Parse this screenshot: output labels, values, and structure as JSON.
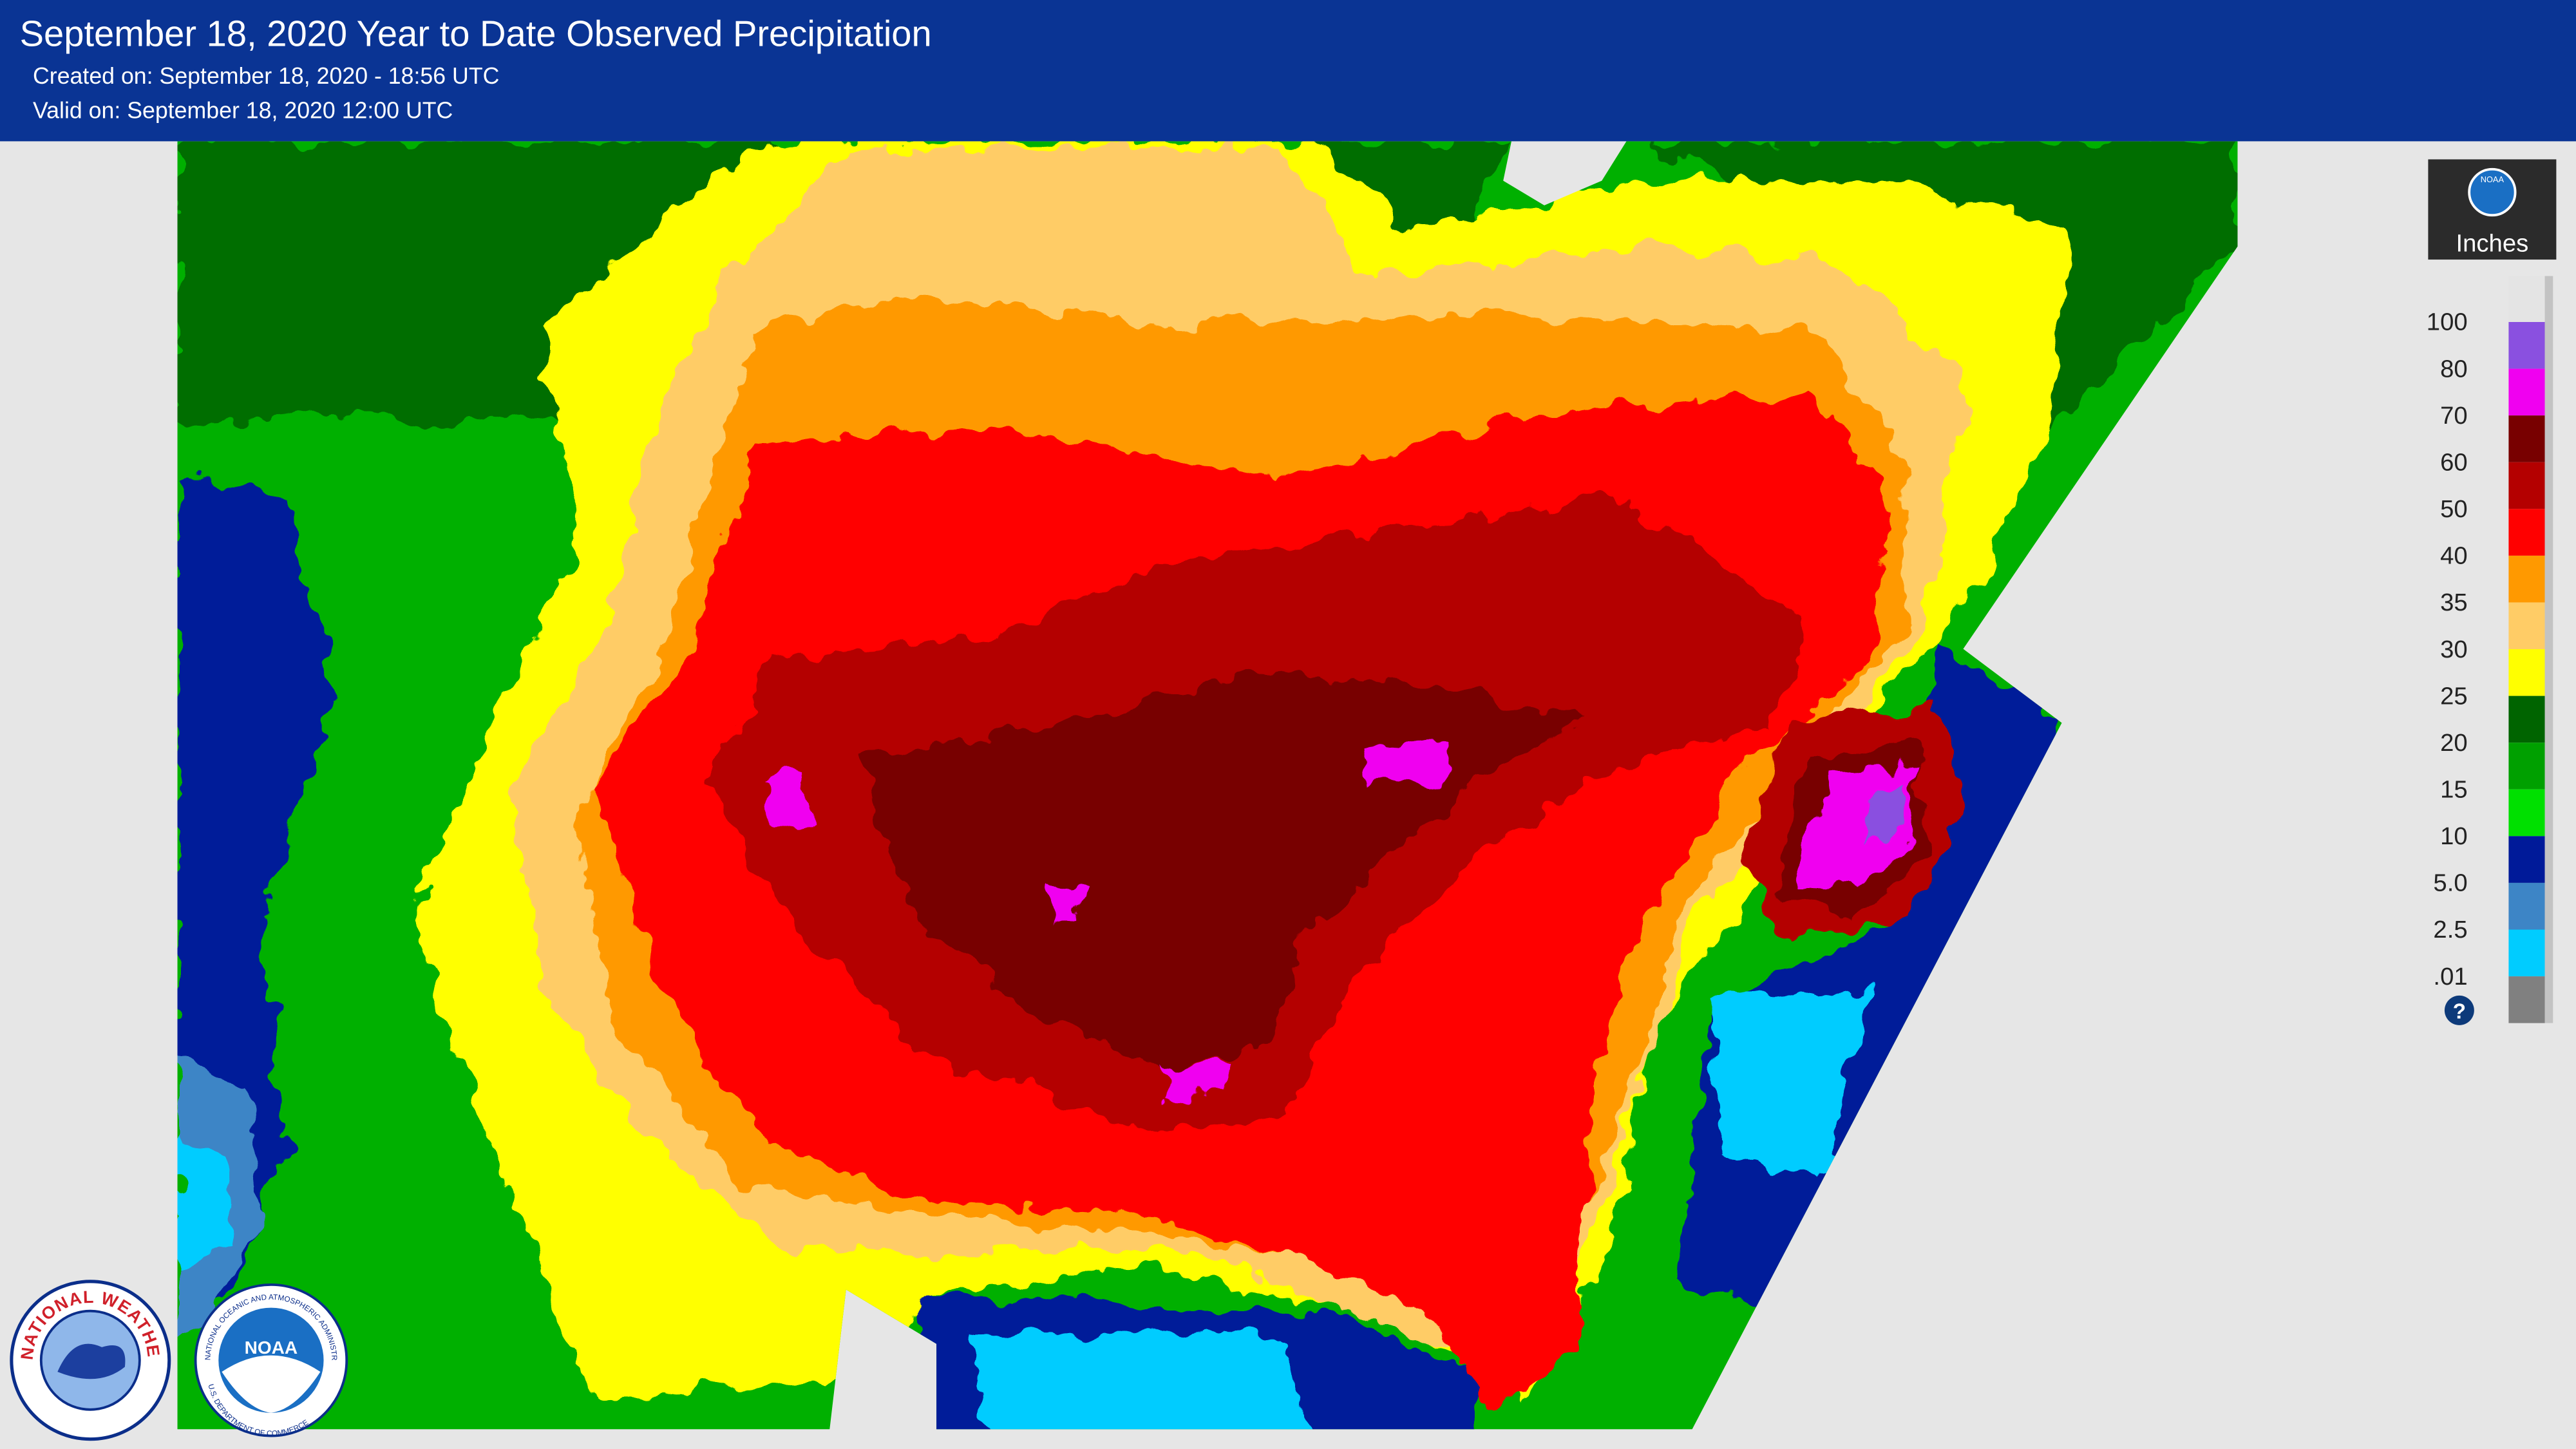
{
  "header": {
    "title": "September 18, 2020 Year to Date Observed Precipitation",
    "created": "Created on: September 18, 2020 - 18:56 UTC",
    "valid": "Valid on: September 18, 2020 12:00 UTC"
  },
  "legend": {
    "logo": "NOAA",
    "unit": "Inches",
    "help": "?",
    "above_color": "#e4e4e4",
    "items": [
      {
        "label": "100",
        "color": "#8a50e0"
      },
      {
        "label": "80",
        "color": "#f000f0"
      },
      {
        "label": "70",
        "color": "#780000"
      },
      {
        "label": "60",
        "color": "#b40000"
      },
      {
        "label": "50",
        "color": "#ff0000"
      },
      {
        "label": "40",
        "color": "#ff9900"
      },
      {
        "label": "35",
        "color": "#ffcc66"
      },
      {
        "label": "30",
        "color": "#ffff00"
      },
      {
        "label": "25",
        "color": "#006400"
      },
      {
        "label": "20",
        "color": "#00a000"
      },
      {
        "label": "15",
        "color": "#00e000"
      },
      {
        "label": "10",
        "color": "#001a99"
      },
      {
        "label": "5.0",
        "color": "#3d85c6"
      },
      {
        "label": "2.5",
        "color": "#00ccff"
      },
      {
        "label": ".01",
        "color": "#808080"
      }
    ]
  },
  "logos": {
    "nws": "NATIONAL WEATHER SERVICE",
    "noaa": "NOAA",
    "noaa_ring": "NATIONAL OCEANIC AND ATMOSPHERIC ADMINISTRATION",
    "noaa_ring_bottom": "U.S. DEPARTMENT OF COMMERCE"
  }
}
